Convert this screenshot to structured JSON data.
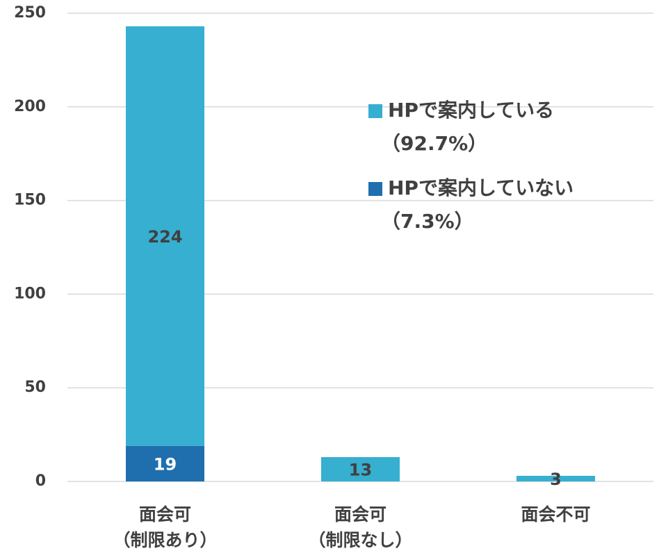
{
  "chart_data": {
    "type": "stacked_bar",
    "categories": [
      [
        "面会可",
        "（制限あり）"
      ],
      [
        "面会可",
        "（制限なし）"
      ],
      [
        "面会不可"
      ]
    ],
    "series": [
      {
        "name": [
          "HPで案内している",
          "（92.7%）"
        ],
        "color": "#36afd0",
        "values": [
          224,
          13,
          3
        ]
      },
      {
        "name": [
          "HPで案内していない",
          "（7.3%）"
        ],
        "color": "#1f6fae",
        "values": [
          19,
          null,
          null
        ]
      }
    ],
    "ylim": [
      0,
      250
    ],
    "yticks": [
      0,
      50,
      100,
      150,
      200,
      250
    ],
    "grid": true
  }
}
